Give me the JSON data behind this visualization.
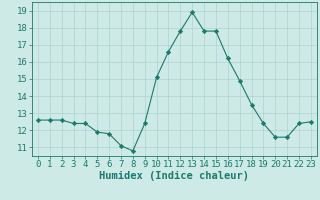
{
  "x": [
    0,
    1,
    2,
    3,
    4,
    5,
    6,
    7,
    8,
    9,
    10,
    11,
    12,
    13,
    14,
    15,
    16,
    17,
    18,
    19,
    20,
    21,
    22,
    23
  ],
  "y": [
    12.6,
    12.6,
    12.6,
    12.4,
    12.4,
    11.9,
    11.8,
    11.1,
    10.8,
    12.4,
    15.1,
    16.6,
    17.8,
    18.9,
    17.8,
    17.8,
    16.2,
    14.9,
    13.5,
    12.4,
    11.6,
    11.6,
    12.4,
    12.5
  ],
  "line_color": "#1a7a6e",
  "marker": "D",
  "marker_size": 2.2,
  "bg_color": "#ceeae6",
  "grid_color": "#aed4d0",
  "xlabel": "Humidex (Indice chaleur)",
  "ylim": [
    10.5,
    19.5
  ],
  "yticks": [
    11,
    12,
    13,
    14,
    15,
    16,
    17,
    18,
    19
  ],
  "xticks": [
    0,
    1,
    2,
    3,
    4,
    5,
    6,
    7,
    8,
    9,
    10,
    11,
    12,
    13,
    14,
    15,
    16,
    17,
    18,
    19,
    20,
    21,
    22,
    23
  ],
  "tick_color": "#1a7a6e",
  "label_color": "#1a7a6e",
  "font_size": 6.5,
  "xlabel_fontsize": 7.5
}
